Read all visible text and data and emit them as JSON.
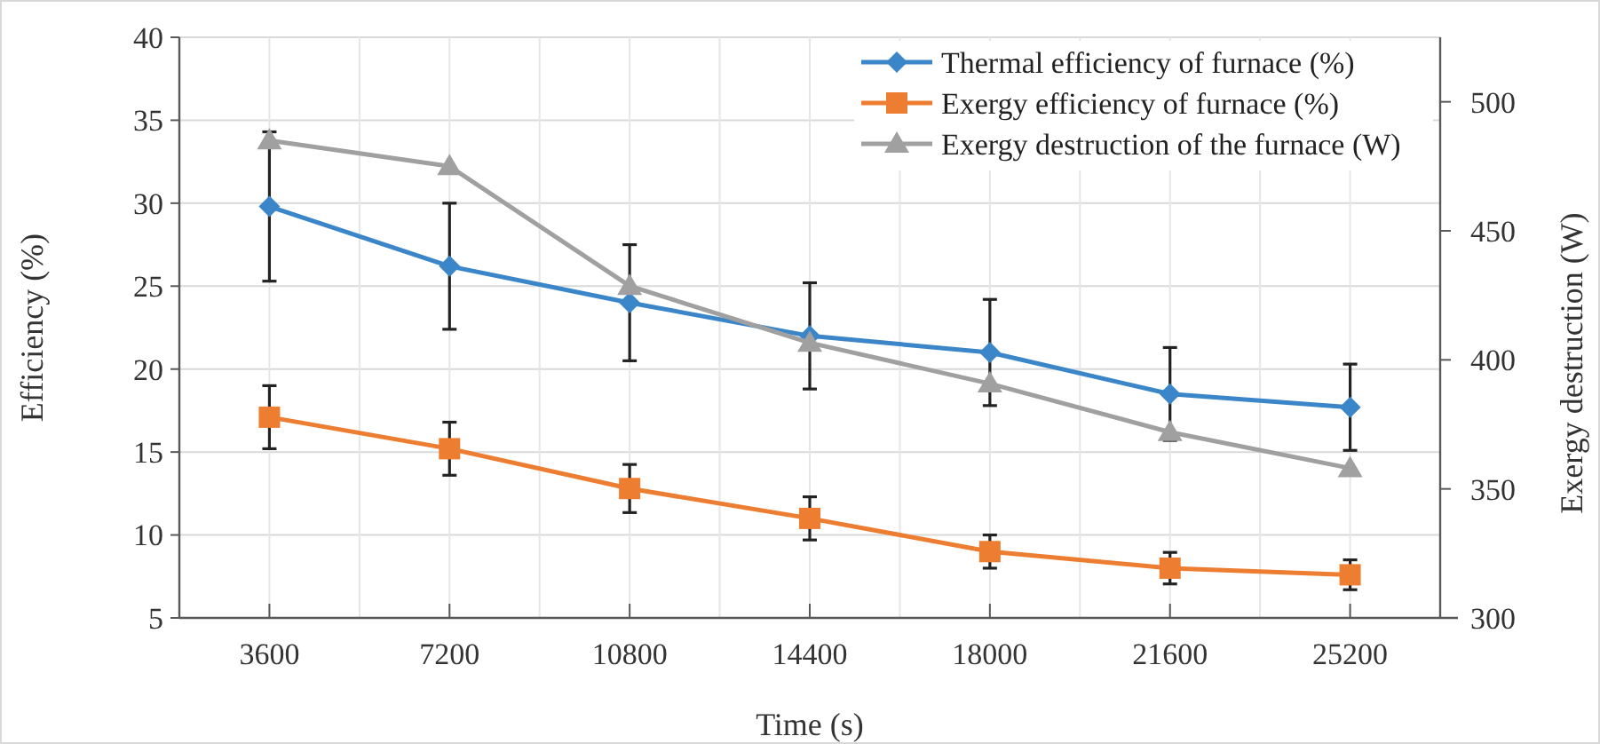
{
  "chart_data": {
    "type": "line",
    "xlabel": "Time (s)",
    "ylabel": "Efficiency (%)",
    "y2label": "Exergy destruction (W)",
    "categories": [
      "3600",
      "7200",
      "10800",
      "14400",
      "18000",
      "21600",
      "25200"
    ],
    "ylim": [
      5,
      40
    ],
    "yticks": [
      5,
      10,
      15,
      20,
      25,
      30,
      35,
      40
    ],
    "y2lim": [
      300,
      525
    ],
    "y2ticks": [
      300,
      350,
      400,
      450,
      500
    ],
    "grid": true,
    "legend": "top right",
    "line_style": "solid",
    "series": [
      {
        "name": "Thermal efficiency of furnace (%)",
        "color": "#3b86c8",
        "marker": "diamond",
        "values": [
          29.8,
          26.2,
          24,
          22,
          21,
          18.5,
          17.7
        ],
        "errors": [
          4.5,
          3.8,
          3.5,
          3.2,
          3.2,
          2.8,
          2.6
        ]
      },
      {
        "name": "Exergy efficiency of furnace (%)",
        "color": "#ed7d31",
        "marker": "square",
        "values": [
          17.1,
          15.2,
          12.8,
          11,
          9,
          8,
          7.6
        ],
        "errors": [
          1.9,
          1.6,
          1.45,
          1.3,
          1,
          0.95,
          0.9
        ]
      },
      {
        "name": "Exergy destruction of the furnace (W)",
        "color": "#a0a0a0",
        "marker": "triangle",
        "axis": "y2",
        "values": [
          485,
          475,
          428.6,
          406.6,
          390.8,
          372,
          358
        ]
      }
    ]
  }
}
